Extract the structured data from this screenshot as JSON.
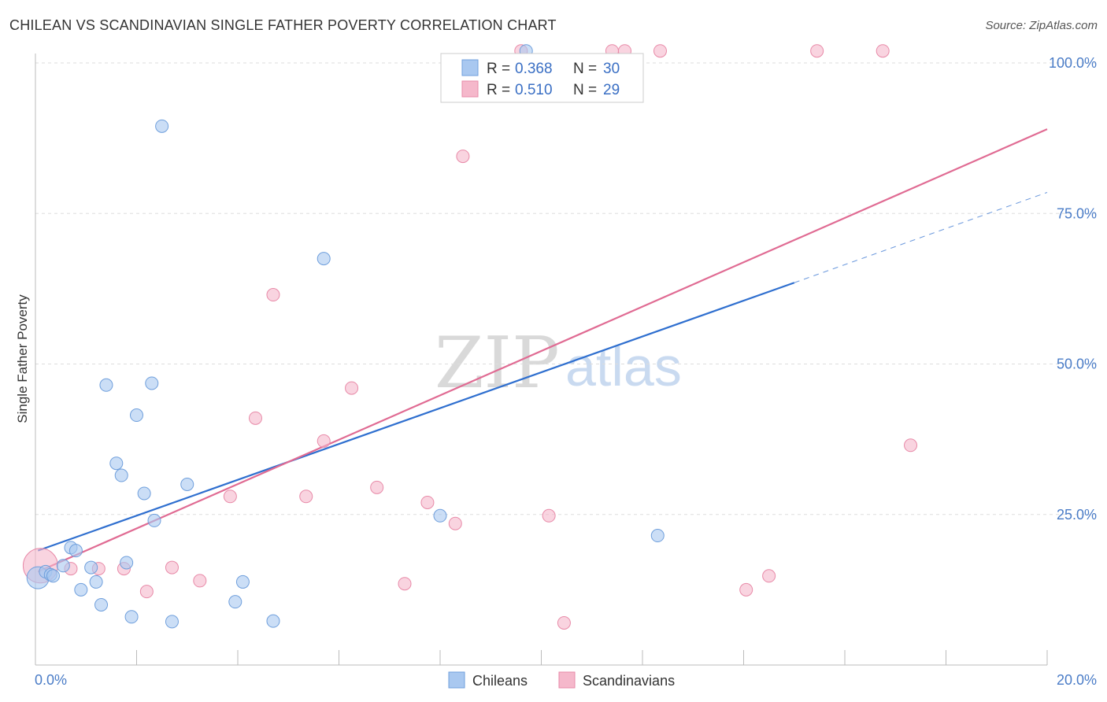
{
  "title": "CHILEAN VS SCANDINAVIAN SINGLE FATHER POVERTY CORRELATION CHART",
  "source": "Source: ZipAtlas.com",
  "watermark": {
    "zip": "ZIP",
    "atlas": "atlas"
  },
  "colors": {
    "chileans": "#a9c8f0",
    "chileans_stroke": "#6f9fdc",
    "chileans_line": "#2f6fcf",
    "scandinavians": "#f5b8cb",
    "scandinavians_stroke": "#e88aa8",
    "scandinavians_line": "#e06b93",
    "grid": "#dddddd",
    "tick_label": "#4a7cc7"
  },
  "legend": {
    "rows": [
      {
        "r_label": "R = ",
        "r_value": "0.368",
        "n_label": "N = ",
        "n_value": "30"
      },
      {
        "r_label": "R = ",
        "r_value": "0.510",
        "n_label": "N = ",
        "n_value": "29"
      }
    ]
  },
  "chart_data": {
    "type": "scatter",
    "title": "CHILEAN VS SCANDINAVIAN SINGLE FATHER POVERTY CORRELATION CHART",
    "xlabel": "",
    "ylabel": "Single Father Poverty",
    "xlim": [
      0,
      20
    ],
    "ylim": [
      0,
      105
    ],
    "x_tick_labels": [
      {
        "value": 0,
        "label": "0.0%"
      },
      {
        "value": 20,
        "label": "20.0%"
      }
    ],
    "y_tick_labels": [
      {
        "value": 25,
        "label": "25.0%"
      },
      {
        "value": 50,
        "label": "50.0%"
      },
      {
        "value": 75,
        "label": "75.0%"
      },
      {
        "value": 100,
        "label": "100.0%"
      }
    ],
    "x_minor_ticks": [
      0,
      2,
      4,
      6,
      8,
      10,
      12,
      14,
      16,
      18,
      20
    ],
    "y_gridlines": [
      25,
      50,
      75,
      100
    ],
    "grid": true,
    "legend_position": "top-center",
    "series": [
      {
        "name": "Chileans",
        "points": [
          [
            0.05,
            14.5,
            14
          ],
          [
            0.2,
            15.5,
            8
          ],
          [
            0.3,
            15.0,
            8
          ],
          [
            0.35,
            14.8,
            8
          ],
          [
            0.55,
            16.5,
            8
          ],
          [
            0.7,
            19.5,
            8
          ],
          [
            0.8,
            19.0,
            8
          ],
          [
            0.9,
            12.5,
            8
          ],
          [
            1.1,
            16.2,
            8
          ],
          [
            1.2,
            13.8,
            8
          ],
          [
            1.3,
            10.0,
            8
          ],
          [
            1.4,
            46.5,
            8
          ],
          [
            1.6,
            33.5,
            8
          ],
          [
            1.7,
            31.5,
            8
          ],
          [
            1.8,
            17.0,
            8
          ],
          [
            1.9,
            8.0,
            8
          ],
          [
            2.0,
            41.5,
            8
          ],
          [
            2.15,
            28.5,
            8
          ],
          [
            2.3,
            46.8,
            8
          ],
          [
            2.35,
            24.0,
            8
          ],
          [
            2.5,
            89.5,
            8
          ],
          [
            2.7,
            7.2,
            8
          ],
          [
            3.0,
            30.0,
            8
          ],
          [
            3.95,
            10.5,
            8
          ],
          [
            4.1,
            13.8,
            8
          ],
          [
            4.7,
            7.3,
            8
          ],
          [
            5.7,
            67.5,
            8
          ],
          [
            8.0,
            24.8,
            8
          ],
          [
            9.7,
            102.0,
            8
          ],
          [
            12.3,
            21.5,
            8
          ]
        ],
        "trend": {
          "x0": 0.05,
          "y0": 19.0,
          "x1": 15.0,
          "y1": 63.5,
          "x_dash_end": 20.0,
          "y_dash_end": 78.5
        }
      },
      {
        "name": "Scandinavians",
        "points": [
          [
            0.1,
            16.5,
            22
          ],
          [
            0.7,
            16.0,
            8
          ],
          [
            1.25,
            16.0,
            8
          ],
          [
            1.75,
            16.0,
            8
          ],
          [
            2.2,
            12.2,
            8
          ],
          [
            2.7,
            16.2,
            8
          ],
          [
            3.25,
            14.0,
            8
          ],
          [
            3.85,
            28.0,
            8
          ],
          [
            4.35,
            41.0,
            8
          ],
          [
            4.7,
            61.5,
            8
          ],
          [
            5.35,
            28.0,
            8
          ],
          [
            5.7,
            37.2,
            8
          ],
          [
            6.25,
            46.0,
            8
          ],
          [
            6.75,
            29.5,
            8
          ],
          [
            7.3,
            13.5,
            8
          ],
          [
            7.75,
            27.0,
            8
          ],
          [
            8.3,
            23.5,
            8
          ],
          [
            8.45,
            84.5,
            8
          ],
          [
            9.6,
            102.0,
            8
          ],
          [
            10.15,
            24.8,
            8
          ],
          [
            10.45,
            7.0,
            8
          ],
          [
            11.4,
            102.0,
            8
          ],
          [
            11.65,
            102.0,
            8
          ],
          [
            12.35,
            102.0,
            8
          ],
          [
            14.05,
            12.5,
            8
          ],
          [
            14.5,
            14.8,
            8
          ],
          [
            15.45,
            102.0,
            8
          ],
          [
            16.75,
            102.0,
            8
          ],
          [
            17.3,
            36.5,
            8
          ]
        ],
        "trend": {
          "x0": 0.05,
          "y0": 15.5,
          "x1": 20.0,
          "y1": 89.0
        }
      }
    ]
  }
}
